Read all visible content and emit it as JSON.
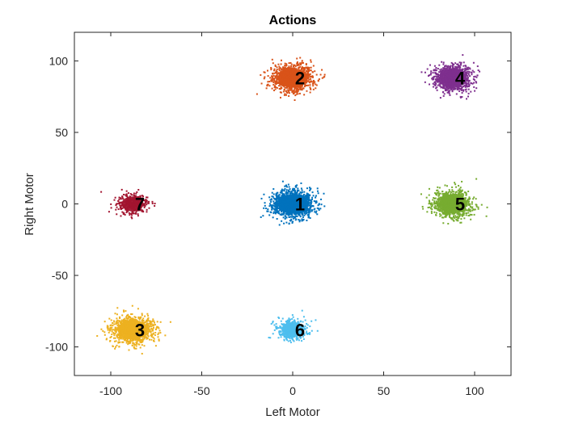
{
  "chart_data": {
    "type": "scatter",
    "title": "Actions",
    "xlabel": "Left Motor",
    "ylabel": "Right Motor",
    "xlim": [
      -120,
      120
    ],
    "ylim": [
      -120,
      120
    ],
    "xticks": [
      -100,
      -50,
      0,
      50,
      100
    ],
    "yticks": [
      -100,
      -50,
      0,
      50,
      100
    ],
    "grid": false,
    "legend": "none",
    "clusters": [
      {
        "label": "1",
        "x": 0,
        "y": 0,
        "spread_x": 5.5,
        "spread_y": 4.5,
        "color": "#0072BD",
        "count": 1400
      },
      {
        "label": "2",
        "x": 0,
        "y": 88,
        "spread_x": 5.5,
        "spread_y": 4.5,
        "color": "#D95319",
        "count": 1100
      },
      {
        "label": "3",
        "x": -88,
        "y": -88,
        "spread_x": 5.5,
        "spread_y": 4.5,
        "color": "#EDB120",
        "count": 1100
      },
      {
        "label": "4",
        "x": 88,
        "y": 88,
        "spread_x": 5.0,
        "spread_y": 4.5,
        "color": "#7E2F8E",
        "count": 1000
      },
      {
        "label": "5",
        "x": 88,
        "y": 0,
        "spread_x": 5.0,
        "spread_y": 4.5,
        "color": "#77AC30",
        "count": 1000
      },
      {
        "label": "6",
        "x": 0,
        "y": -88,
        "spread_x": 4.0,
        "spread_y": 3.5,
        "color": "#4DBEEE",
        "count": 450
      },
      {
        "label": "7",
        "x": -88,
        "y": 0,
        "spread_x": 4.0,
        "spread_y": 3.5,
        "color": "#A2142F",
        "count": 350
      }
    ]
  }
}
